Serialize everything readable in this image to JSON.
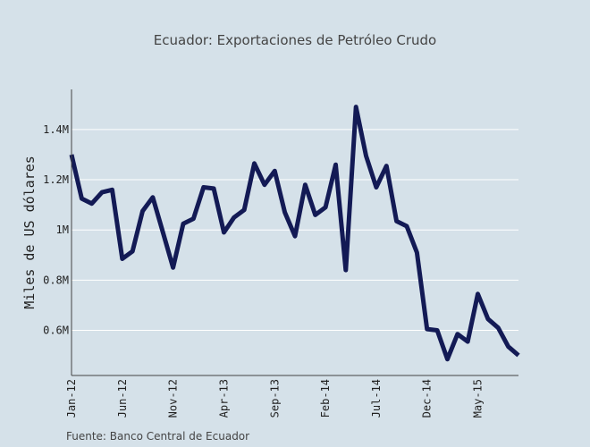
{
  "chart_data": {
    "type": "line",
    "title": "Ecuador: Exportaciones de Petróleo Crudo",
    "xlabel": "",
    "ylabel": "Miles de US dólares",
    "source": "Fuente: Banco Central de Ecuador",
    "x_start": "2012-01",
    "x_tick_labels": [
      "Jan-12",
      "Jun-12",
      "Nov-12",
      "Apr-13",
      "Sep-13",
      "Feb-14",
      "Jul-14",
      "Dec-14",
      "May-15"
    ],
    "y_tick_labels": [
      "0.6M",
      "0.8M",
      "1M",
      "1.2M",
      "1.4M"
    ],
    "y_tick_values": [
      600000,
      800000,
      1000000,
      1200000,
      1400000
    ],
    "ylim": [
      420000,
      1560000
    ],
    "grid": true,
    "series": [
      {
        "name": "",
        "color": "#131a55",
        "x": [
          "2012-01",
          "2012-02",
          "2012-03",
          "2012-04",
          "2012-05",
          "2012-06",
          "2012-07",
          "2012-08",
          "2012-09",
          "2012-10",
          "2012-11",
          "2012-12",
          "2013-01",
          "2013-02",
          "2013-03",
          "2013-04",
          "2013-05",
          "2013-06",
          "2013-07",
          "2013-08",
          "2013-09",
          "2013-10",
          "2013-11",
          "2013-12",
          "2014-01",
          "2014-02",
          "2014-03",
          "2014-04",
          "2014-05",
          "2014-06",
          "2014-07",
          "2014-08",
          "2014-09",
          "2014-10",
          "2014-11",
          "2014-12",
          "2015-01",
          "2015-02",
          "2015-03",
          "2015-04",
          "2015-05",
          "2015-06",
          "2015-07",
          "2015-08",
          "2015-09"
        ],
        "values": [
          1300000,
          1125000,
          1105000,
          1150000,
          1160000,
          885000,
          915000,
          1075000,
          1130000,
          990000,
          850000,
          1025000,
          1045000,
          1170000,
          1165000,
          990000,
          1050000,
          1080000,
          1265000,
          1180000,
          1235000,
          1070000,
          975000,
          1180000,
          1060000,
          1090000,
          1260000,
          840000,
          1490000,
          1295000,
          1170000,
          1255000,
          1035000,
          1015000,
          910000,
          605000,
          600000,
          485000,
          585000,
          555000,
          745000,
          645000,
          610000,
          535000,
          500000
        ]
      }
    ]
  }
}
